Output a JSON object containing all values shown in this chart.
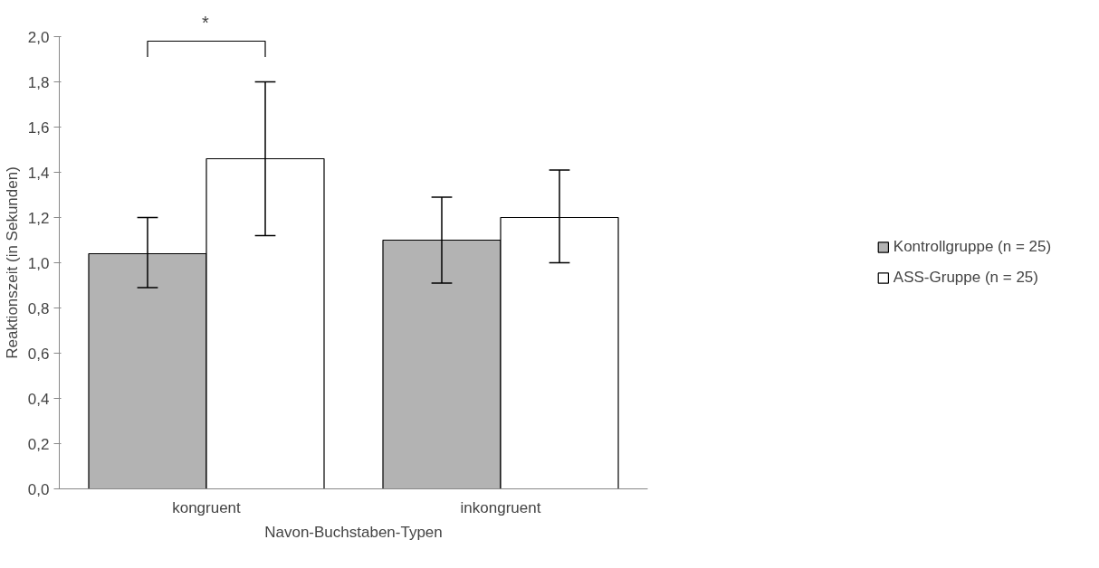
{
  "chart_data": {
    "type": "bar",
    "xlabel": "Navon-Buchstaben-Typen",
    "ylabel": "Reaktionszeit (in Sekunden)",
    "categories": [
      "kongruent",
      "inkongruent"
    ],
    "series": [
      {
        "name": "Kontrollgruppe (n = 25)",
        "color": "#b3b3b3",
        "values": [
          1.04,
          1.1
        ],
        "errors": [
          [
            0.89,
            1.2
          ],
          [
            0.91,
            1.29
          ]
        ]
      },
      {
        "name": "ASS-Gruppe (n = 25)",
        "color": "#ffffff",
        "values": [
          1.46,
          1.2
        ],
        "errors": [
          [
            1.12,
            1.8
          ],
          [
            1.0,
            1.41
          ]
        ]
      }
    ],
    "ylim": [
      0,
      2
    ],
    "yticks": [
      {
        "value": 0,
        "label": "0,0"
      },
      {
        "value": 0.2,
        "label": "0,2"
      },
      {
        "value": 0.4,
        "label": "0,4"
      },
      {
        "value": 0.6,
        "label": "0,6"
      },
      {
        "value": 0.8,
        "label": "0,8"
      },
      {
        "value": 1.0,
        "label": "1,0"
      },
      {
        "value": 1.2,
        "label": "1,2"
      },
      {
        "value": 1.4,
        "label": "1,4"
      },
      {
        "value": 1.6,
        "label": "1,6"
      },
      {
        "value": 1.8,
        "label": "1,8"
      },
      {
        "value": 2.0,
        "label": "2,0"
      }
    ],
    "annotations": [
      "*"
    ],
    "grid": false,
    "legend": "right"
  }
}
